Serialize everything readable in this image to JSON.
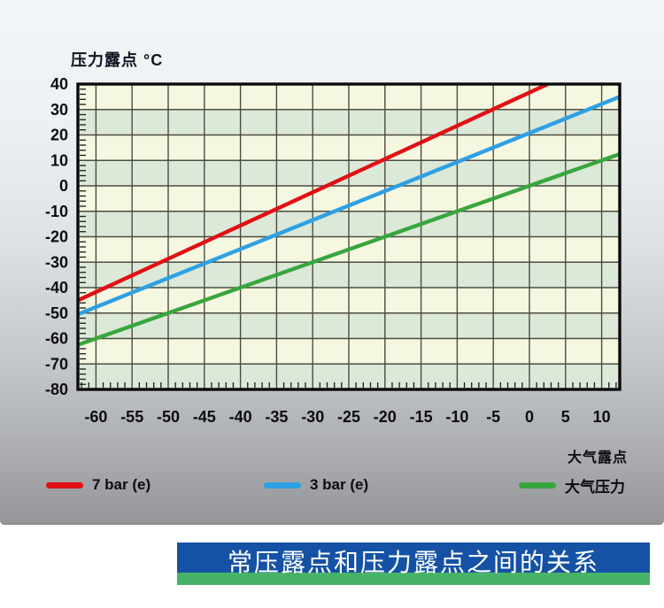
{
  "panel": {
    "bg_top": "#f3f6f8",
    "bg_bottom": "#95969a"
  },
  "chart_data": {
    "type": "line",
    "y_axis_title": "压力露点 °C",
    "x_axis_title": "大气露点",
    "xlim": [
      -62.5,
      12.5
    ],
    "ylim": [
      -80,
      40
    ],
    "x_ticks": [
      -60,
      -55,
      -50,
      -45,
      -40,
      -35,
      -30,
      -25,
      -20,
      -15,
      -10,
      -5,
      0,
      5,
      10
    ],
    "y_ticks": [
      40,
      30,
      20,
      10,
      0,
      -10,
      -20,
      -30,
      -40,
      -50,
      -60,
      -70,
      -80
    ],
    "x_minor_step": 1,
    "y_minor_step": 2,
    "band_colors": [
      "#f6f7e0",
      "#dce8d8"
    ],
    "grid_color": "#4c4c42",
    "frame_color": "#0a0a0a",
    "tick_label_color": "#0c0c12",
    "series": [
      {
        "name": "7 bar (e)",
        "color": "#e01015",
        "points": [
          [
            -62.5,
            -45
          ],
          [
            12.5,
            53
          ]
        ]
      },
      {
        "name": "3 bar (e)",
        "color": "#2ea0e4",
        "points": [
          [
            -62.5,
            -50.5
          ],
          [
            12.5,
            35
          ]
        ]
      },
      {
        "name": "大气压力",
        "color": "#38a63e",
        "points": [
          [
            -62.5,
            -62.5
          ],
          [
            12.5,
            12.5
          ]
        ]
      }
    ]
  },
  "legend": {
    "items": [
      {
        "label": "7 bar (e)",
        "color": "#e01015"
      },
      {
        "label": "3 bar (e)",
        "color": "#2ea0e4"
      },
      {
        "label": "大气压力",
        "color": "#38a63e"
      }
    ]
  },
  "footer": {
    "title": "常压露点和压力露点之间的关系",
    "bar_color": "#1552a5",
    "stripe_color": "#47b366",
    "text_color": "#ffffff"
  }
}
